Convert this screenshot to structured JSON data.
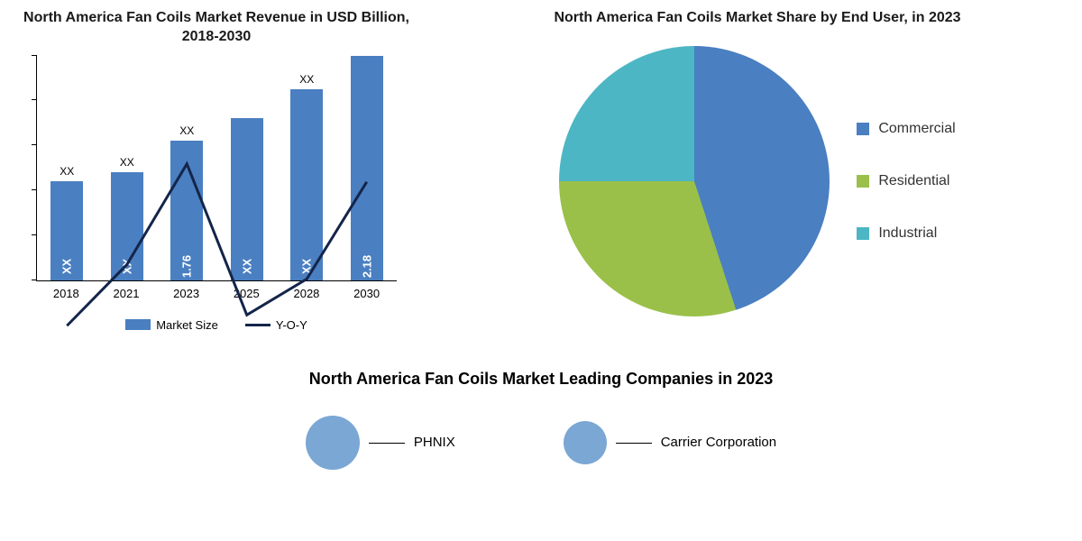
{
  "bar_chart": {
    "type": "bar+line",
    "title": "North America Fan Coils  Market Revenue in USD Billion, 2018-2030",
    "title_fontsize": 16,
    "categories": [
      "2018",
      "2021",
      "2023",
      "2025",
      "2028",
      "2030"
    ],
    "bar_heights_pct": [
      44,
      48,
      62,
      72,
      85,
      100
    ],
    "bar_top_labels": [
      "XX",
      "XX",
      "XX",
      "",
      "XX",
      ""
    ],
    "bar_inside_labels": [
      "XX",
      "XX",
      "1.76",
      "XX",
      "XX",
      "2.18"
    ],
    "bar_color": "#4a7fc1",
    "line_points_pct": [
      25,
      42,
      70,
      28,
      38,
      65
    ],
    "line_color": "#14254a",
    "line_width": 3,
    "background_color": "#ffffff",
    "axis_color": "#000000",
    "y_tick_count": 5,
    "legend": {
      "market_size": "Market Size",
      "yoy": "Y-O-Y"
    },
    "label_fontsize": 13
  },
  "pie_chart": {
    "type": "pie",
    "title": "North America Fan Coils  Market Share by End User, in 2023",
    "title_fontsize": 16,
    "slices": [
      {
        "label": "Commercial",
        "value": 45,
        "color": "#4a7fc1"
      },
      {
        "label": "Residential",
        "value": 30,
        "color": "#9ac04a"
      },
      {
        "label": "Industrial",
        "value": 25,
        "color": "#4db6c4"
      }
    ],
    "background_color": "#ffffff",
    "legend_fontsize": 16
  },
  "companies": {
    "title": "North America Fan Coils  Market Leading Companies in 2023",
    "title_fontsize": 18,
    "bubble_color": "#7ba7d4",
    "items": [
      {
        "label": "PHNIX",
        "size": 60
      },
      {
        "label": "Carrier Corporation",
        "size": 48
      }
    ]
  }
}
